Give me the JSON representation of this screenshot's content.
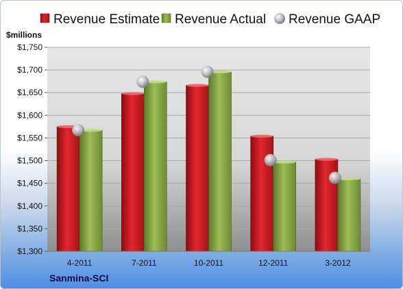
{
  "chart_data": {
    "type": "bar",
    "unit_label": "$millions",
    "company": "Sanmina-SCI",
    "categories": [
      "4-2011",
      "7-2011",
      "10-2011",
      "12-2011",
      "3-2012"
    ],
    "series": [
      {
        "name": "Revenue Estimate",
        "values": [
          1575,
          1648,
          1666,
          1554,
          1503
        ],
        "color": "#d11f26"
      },
      {
        "name": "Revenue Actual",
        "values": [
          1567,
          1674,
          1696,
          1497,
          1460
        ],
        "color": "#8eb04a"
      },
      {
        "name": "Revenue GAAP",
        "values": [
          1567,
          1674,
          1696,
          1501,
          1462
        ],
        "color": "#b9bcc2",
        "marker": "sphere"
      }
    ],
    "ylim": [
      1300,
      1750
    ],
    "yticks": [
      1300,
      1350,
      1400,
      1450,
      1500,
      1550,
      1600,
      1650,
      1700,
      1750
    ],
    "ytick_labels": [
      "$1,300",
      "$1,350",
      "$1,400",
      "$1,450",
      "$1,500",
      "$1,550",
      "$1,600",
      "$1,650",
      "$1,700",
      "$1,750"
    ],
    "grid": true,
    "legend": "top"
  }
}
